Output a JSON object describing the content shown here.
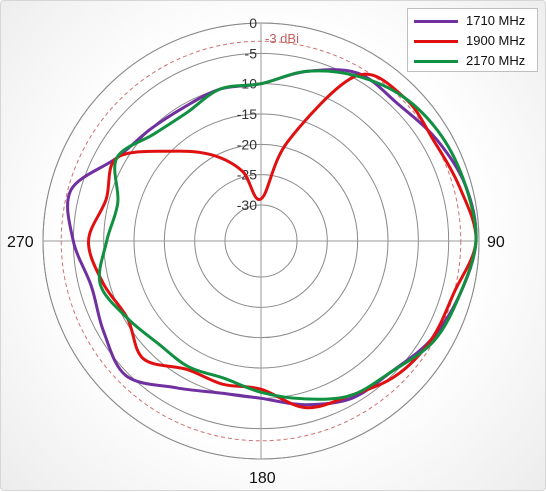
{
  "chart_data": {
    "type": "polar-line",
    "radial_ticks": [
      "0",
      "-5",
      "-10",
      "-15",
      "-20",
      "-25",
      "-30"
    ],
    "radial_values": [
      0,
      -5,
      -10,
      -15,
      -20,
      -25,
      -30
    ],
    "radial_range": [
      -30,
      0
    ],
    "reference": {
      "value": -3,
      "label": "-3 dBi",
      "color": "#d07070"
    },
    "angle_labels": {
      "90": "90",
      "180": "180",
      "270": "270"
    },
    "grid": true,
    "legend_position": "top-right",
    "angles_deg": [
      0,
      15,
      30,
      45,
      60,
      75,
      90,
      105,
      120,
      135,
      150,
      165,
      180,
      195,
      210,
      225,
      240,
      255,
      270,
      285,
      300,
      315,
      330,
      345
    ],
    "series": [
      {
        "name": "1710 MHz",
        "color": "#7030a0",
        "values": [
          -10,
          -7,
          -4,
          -4,
          -2.5,
          -1,
          -0.5,
          -2,
          -3.5,
          -5.5,
          -6,
          -8,
          -10,
          -10,
          -8,
          -4.5,
          -6,
          -7,
          -5,
          -3.5,
          -8.5,
          -10,
          -10.5,
          -10
        ]
      },
      {
        "name": "1900 MHz",
        "color": "#e01010",
        "values": [
          -29,
          -19,
          -4.5,
          -2.5,
          -3,
          -2,
          -0.5,
          -3,
          -3.5,
          -4.5,
          -6.5,
          -7.5,
          -11.5,
          -11.5,
          -11.5,
          -8.5,
          -10.5,
          -9,
          -7.5,
          -9.5,
          -8.5,
          -15,
          -19.5,
          -24
        ]
      },
      {
        "name": "2170 MHz",
        "color": "#109040",
        "values": [
          -10,
          -7,
          -4.5,
          -2.5,
          -1.5,
          -1,
          -0.5,
          -2,
          -3,
          -5.5,
          -6.5,
          -9,
          -11,
          -12.5,
          -12,
          -12,
          -10.5,
          -8.5,
          -10.5,
          -11.5,
          -8.5,
          -11,
          -11.5,
          -10
        ]
      }
    ]
  }
}
